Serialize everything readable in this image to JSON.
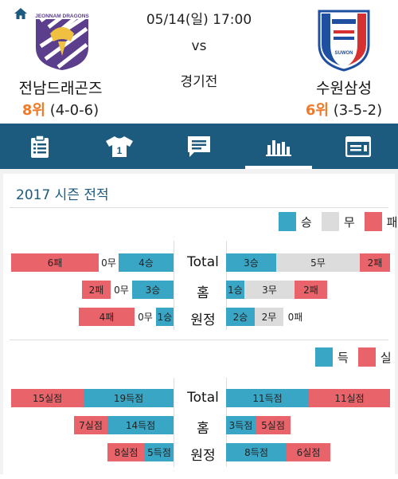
{
  "header": {
    "match_date": "05/14(일) 17:00",
    "vs": "vs",
    "match_type": "경기전",
    "home_team": {
      "name": "전남드래곤즈",
      "rank": "8위",
      "record": "(4-0-6)",
      "logo_text": "JEONNAM DRAGONS"
    },
    "away_team": {
      "name": "수원삼성",
      "rank": "6위",
      "record": "(3-5-2)",
      "logo_text": "SUWON"
    }
  },
  "nav": {
    "items": [
      {
        "icon": "clipboard-icon"
      },
      {
        "icon": "jersey-icon",
        "label": "1"
      },
      {
        "icon": "chat-icon"
      },
      {
        "icon": "bar-chart-icon",
        "active": true
      },
      {
        "icon": "news-icon"
      }
    ]
  },
  "colors": {
    "win": "#3aa6c6",
    "draw": "#dcdcdc",
    "loss": "#e8646a",
    "nav": "#1c5a7e",
    "rank": "#f07a2a"
  },
  "season": {
    "title": "2017 시즌 전적",
    "legend": {
      "win": "승",
      "draw": "무",
      "loss": "패"
    },
    "row_labels": [
      "Total",
      "홈",
      "원정"
    ],
    "home_team": [
      {
        "loss": "6패",
        "draw": "0무",
        "win": "4승"
      },
      {
        "loss": "2패",
        "draw": "0무",
        "win": "3승"
      },
      {
        "loss": "4패",
        "draw": "0무",
        "win": "1승"
      }
    ],
    "away_team": [
      {
        "win": "3승",
        "draw": "5무",
        "loss": "2패"
      },
      {
        "win": "1승",
        "draw": "3무",
        "loss": "2패"
      },
      {
        "win": "2승",
        "draw": "2무",
        "loss": "0패"
      }
    ]
  },
  "goals": {
    "legend": {
      "scored": "득",
      "conceded": "실"
    },
    "row_labels": [
      "Total",
      "홈",
      "원정"
    ],
    "home_team": [
      {
        "conceded": "15실점",
        "scored": "19득점"
      },
      {
        "conceded": "7실점",
        "scored": "14득점"
      },
      {
        "conceded": "8실점",
        "scored": "5득점"
      }
    ],
    "away_team": [
      {
        "scored": "11득점",
        "conceded": "11실점"
      },
      {
        "scored": "3득점",
        "conceded": "5실점"
      },
      {
        "scored": "8득점",
        "conceded": "6실점"
      }
    ]
  }
}
